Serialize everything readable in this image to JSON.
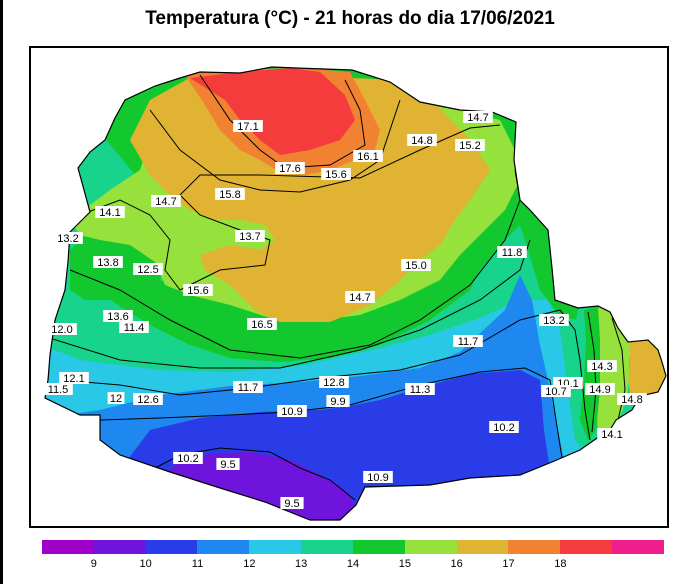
{
  "title": "Temperatura (°C) - 21 horas do dia 17/06/2021",
  "map_type": "isotherm contour map",
  "colors": {
    "bands": [
      "#a000c8",
      "#6e14dc",
      "#2a3ce8",
      "#1e88f0",
      "#28c8e6",
      "#18d38c",
      "#12c82e",
      "#96e13c",
      "#e0b432",
      "#f08232",
      "#f53c3c",
      "#f01e8c"
    ],
    "outside": "#ffffff",
    "contour_line": "#000000"
  },
  "colorbar": {
    "ticks": [
      "9",
      "10",
      "11",
      "12",
      "13",
      "14",
      "15",
      "16",
      "17",
      "18"
    ]
  },
  "station_labels": [
    "17.1",
    "14.7",
    "14.8",
    "15.2",
    "16.1",
    "17.6",
    "15.6",
    "14.1",
    "14.7",
    "15.8",
    "13.2",
    "13.7",
    "13.8",
    "12.5",
    "15.0",
    "11.8",
    "15.6",
    "14.7",
    "13.6",
    "11.4",
    "16.5",
    "12.0",
    "13.2",
    "11.7",
    "12.1",
    "11.5",
    "14.3",
    "11.7",
    "12.8",
    "11.3",
    "10.1",
    "10.7",
    "14.9",
    "12",
    "12.6",
    "9.9",
    "14.8",
    "10.9",
    "10.2",
    "14.1",
    "10.2",
    "9.5",
    "10.9",
    "9.5"
  ]
}
